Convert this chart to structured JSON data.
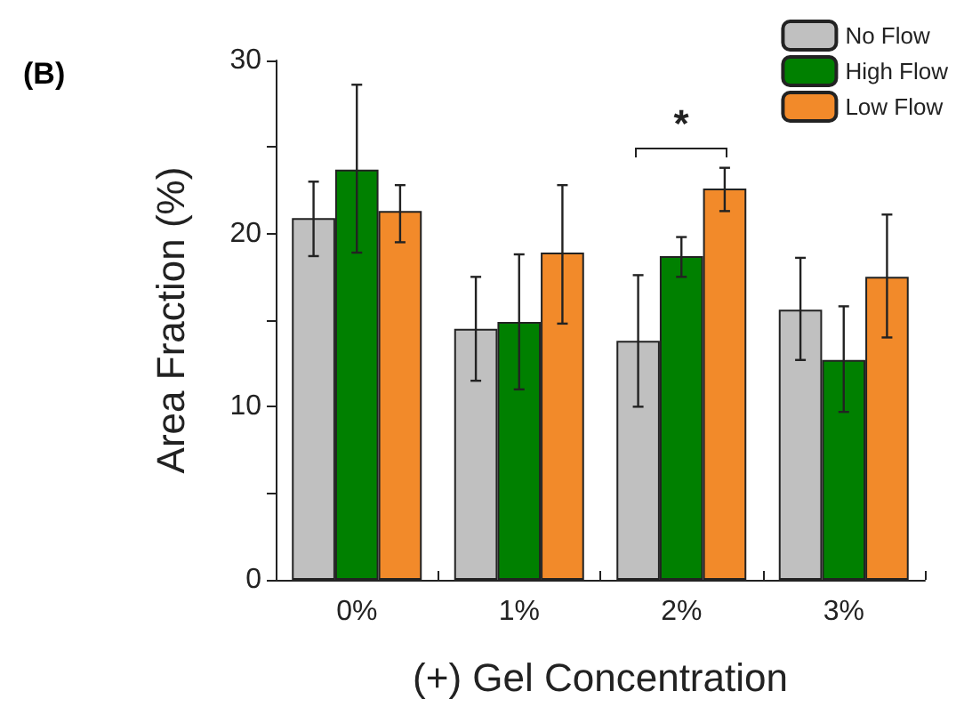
{
  "chart_data": {
    "type": "bar",
    "title": "(B)",
    "xlabel": "(+) Gel Concentration",
    "ylabel": "Area Fraction (%)",
    "categories": [
      "0%",
      "1%",
      "2%",
      "3%"
    ],
    "series": [
      {
        "name": "No Flow",
        "color": "#c0c0c0",
        "values": [
          20.9,
          14.5,
          13.8,
          15.6
        ],
        "errors": [
          [
            18.7,
            23.0
          ],
          [
            11.5,
            17.5
          ],
          [
            10.0,
            17.6
          ],
          [
            12.7,
            18.6
          ]
        ]
      },
      {
        "name": "High Flow",
        "color": "#008000",
        "values": [
          23.7,
          14.9,
          18.7,
          12.7
        ],
        "errors": [
          [
            18.9,
            28.6
          ],
          [
            11.0,
            18.8
          ],
          [
            17.5,
            19.8
          ],
          [
            9.7,
            15.8
          ]
        ]
      },
      {
        "name": "Low Flow",
        "color": "#f28a2a",
        "values": [
          21.3,
          18.9,
          22.6,
          17.5
        ],
        "errors": [
          [
            19.5,
            22.8
          ],
          [
            14.8,
            22.8
          ],
          [
            21.3,
            23.8
          ],
          [
            14.0,
            21.1
          ]
        ]
      }
    ],
    "ylim": [
      0,
      30
    ],
    "yticks": [
      0,
      {
        "value": 5,
        "label": null
      },
      10,
      {
        "value": 15,
        "label": null
      },
      20,
      {
        "value": 25,
        "label": null
      },
      30
    ],
    "legend": "top right",
    "grid": false,
    "annotations": [
      "*"
    ]
  }
}
